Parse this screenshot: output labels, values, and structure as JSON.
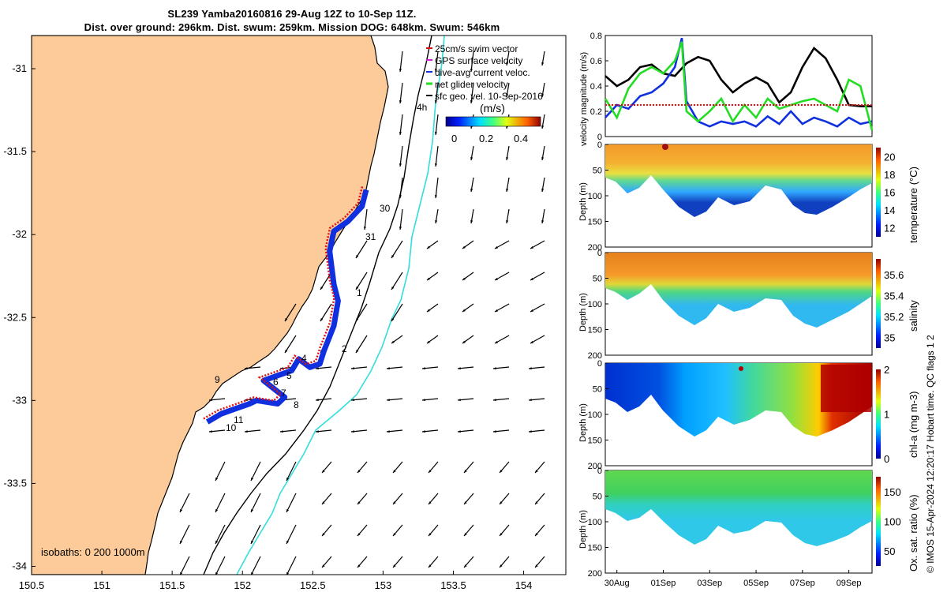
{
  "title": {
    "line1": "SL239 Yamba20160816 29-Aug 12Z to 10-Sep 11Z.",
    "line2": "Dist. over ground: 296km. Dist. swum: 259km. Mission DOG: 648km. Swum: 546km"
  },
  "legend": {
    "items": [
      {
        "label": "25cm/s swim vector",
        "color": "#e01010"
      },
      {
        "label": "GPS surface velocity",
        "color": "#cc22cc"
      },
      {
        "label": "dive-avg current veloc.",
        "color": "#1030e0"
      },
      {
        "label": "net glider velocity",
        "color": "#22dd22"
      },
      {
        "label": "sfc geo. vel. 10-Sep-2016",
        "color": "#000000"
      }
    ],
    "colorbar_title": "(m/s)",
    "colorbar_ticks": [
      "0",
      "0.2",
      "0.4"
    ],
    "label_4h": "4h"
  },
  "map": {
    "isobaths_note": "isobaths: 0   200  1000m",
    "colors": {
      "land": "#fccb99",
      "sea": "#ffffff",
      "isobath_200": "#000000",
      "isobath_1000": "#33dddd",
      "dive_current": "#1030e0",
      "swim_vector": "#e01010"
    },
    "track_day_labels": [
      "30",
      "31",
      "1",
      "2",
      "4",
      "5",
      "6",
      "7",
      "8",
      "9",
      "10",
      "11"
    ]
  },
  "chart_data": [
    {
      "type": "line",
      "panel": "map",
      "xlim": [
        150.5,
        154.3
      ],
      "ylim": [
        -34.05,
        -30.8
      ],
      "x_ticks": [
        "150.5",
        "151",
        "151.5",
        "152",
        "152.5",
        "153",
        "153.5",
        "154"
      ],
      "y_ticks": [
        "-31",
        "-31.5",
        "-32",
        "-32.5",
        "-33",
        "-33.5",
        "-34"
      ],
      "x_tick_values": [
        150.5,
        151,
        151.5,
        152,
        152.5,
        153,
        153.5,
        154
      ],
      "y_tick_values": [
        -31,
        -31.5,
        -32,
        -32.5,
        -33,
        -33.5,
        -34
      ],
      "series": [
        {
          "name": "dive-avg current veloc.",
          "points": [
            [
              152.88,
              -31.73
            ],
            [
              152.85,
              -31.83
            ],
            [
              152.75,
              -31.92
            ],
            [
              152.65,
              -31.98
            ],
            [
              152.62,
              -32.1
            ],
            [
              152.65,
              -32.3
            ],
            [
              152.68,
              -32.4
            ],
            [
              152.65,
              -32.55
            ],
            [
              152.58,
              -32.7
            ],
            [
              152.55,
              -32.78
            ],
            [
              152.48,
              -32.8
            ],
            [
              152.4,
              -32.75
            ],
            [
              152.35,
              -32.82
            ],
            [
              152.25,
              -32.85
            ],
            [
              152.15,
              -32.88
            ],
            [
              152.3,
              -32.98
            ],
            [
              152.25,
              -33.02
            ],
            [
              152.1,
              -33.0
            ],
            [
              152.05,
              -33.02
            ],
            [
              151.95,
              -33.05
            ],
            [
              151.85,
              -33.08
            ],
            [
              151.75,
              -33.13
            ]
          ]
        }
      ]
    },
    {
      "type": "line",
      "panel": "velocity",
      "ylabel": "velocity magnitude (m/s)",
      "ylim": [
        0,
        0.8
      ],
      "y_ticks": [
        "0",
        "0.2",
        "0.4",
        "0.6",
        "0.8"
      ],
      "xlim_days": [
        29.5,
        41.0
      ],
      "series": [
        {
          "color": "#000000",
          "x": [
            29.5,
            30.0,
            30.5,
            31.0,
            31.5,
            32.0,
            32.5,
            33.0,
            33.5,
            34.0,
            34.5,
            35.0,
            35.5,
            36.0,
            36.5,
            37.0,
            37.5,
            38.0,
            38.5,
            39.0,
            39.5,
            40.0,
            40.5,
            41.0
          ],
          "y": [
            0.48,
            0.4,
            0.45,
            0.55,
            0.57,
            0.5,
            0.48,
            0.58,
            0.63,
            0.6,
            0.45,
            0.35,
            0.42,
            0.47,
            0.42,
            0.27,
            0.35,
            0.55,
            0.7,
            0.62,
            0.45,
            0.25,
            0.24,
            0.24
          ]
        },
        {
          "color": "#1030e0",
          "x": [
            29.5,
            30.0,
            30.5,
            31.0,
            31.5,
            32.0,
            32.5,
            32.8,
            33.0,
            33.5,
            34.0,
            34.5,
            35.0,
            35.5,
            36.0,
            36.5,
            37.0,
            37.5,
            38.0,
            38.5,
            39.0,
            39.5,
            40.0,
            40.5,
            41.0
          ],
          "y": [
            0.15,
            0.25,
            0.22,
            0.32,
            0.35,
            0.42,
            0.55,
            0.78,
            0.28,
            0.12,
            0.08,
            0.12,
            0.1,
            0.12,
            0.08,
            0.16,
            0.1,
            0.2,
            0.1,
            0.15,
            0.12,
            0.08,
            0.15,
            0.1,
            0.12
          ]
        },
        {
          "color": "#22dd22",
          "x": [
            29.5,
            30.0,
            30.5,
            31.0,
            31.5,
            32.0,
            32.5,
            32.8,
            33.0,
            33.5,
            34.0,
            34.5,
            35.0,
            35.5,
            36.0,
            36.5,
            37.0,
            37.5,
            38.0,
            38.5,
            39.0,
            39.5,
            40.0,
            40.5,
            41.0
          ],
          "y": [
            0.3,
            0.15,
            0.38,
            0.5,
            0.55,
            0.5,
            0.6,
            0.75,
            0.2,
            0.12,
            0.2,
            0.3,
            0.12,
            0.25,
            0.15,
            0.3,
            0.22,
            0.25,
            0.28,
            0.3,
            0.25,
            0.2,
            0.45,
            0.4,
            0.05
          ]
        },
        {
          "color": "#e01010",
          "x": [
            29.5,
            41.0
          ],
          "y": [
            0.25,
            0.25
          ]
        }
      ]
    },
    {
      "type": "heatmap",
      "panel": "temperature",
      "ylabel": "Depth (m)",
      "colorbar_label": "temperature (°C)",
      "colorbar_ticks": [
        "12",
        "14",
        "16",
        "18",
        "20"
      ],
      "ylim": [
        200,
        0
      ],
      "y_ticks": [
        "0",
        "50",
        "100",
        "150",
        "200"
      ]
    },
    {
      "type": "heatmap",
      "panel": "salinity",
      "ylabel": "Depth (m)",
      "colorbar_label": "salinity",
      "colorbar_ticks": [
        "35",
        "35.2",
        "35.4",
        "35.6"
      ],
      "ylim": [
        200,
        0
      ],
      "y_ticks": [
        "0",
        "50",
        "100",
        "150",
        "200"
      ]
    },
    {
      "type": "heatmap",
      "panel": "chl-a",
      "ylabel": "Depth (m)",
      "colorbar_label": "chl-a (mg m-3)",
      "colorbar_ticks": [
        "0",
        "1",
        "2"
      ],
      "ylim": [
        200,
        0
      ],
      "y_ticks": [
        "0",
        "50",
        "100",
        "150",
        "200"
      ]
    },
    {
      "type": "heatmap",
      "panel": "oxygen",
      "ylabel": "Depth (m)",
      "colorbar_label": "Ox. sat. ratio (%)",
      "colorbar_ticks": [
        "50",
        "100",
        "150"
      ],
      "ylim": [
        200,
        0
      ],
      "y_ticks": [
        "0",
        "50",
        "100",
        "150",
        "200"
      ],
      "x_ticks": [
        "30Aug",
        "01Sep",
        "03Sep",
        "05Sep",
        "07Sep",
        "09Sep"
      ]
    }
  ],
  "footer": {
    "credit": "© IMOS 15-Apr-2024 12:20:17 Hobart time. QC flags 1  2"
  }
}
